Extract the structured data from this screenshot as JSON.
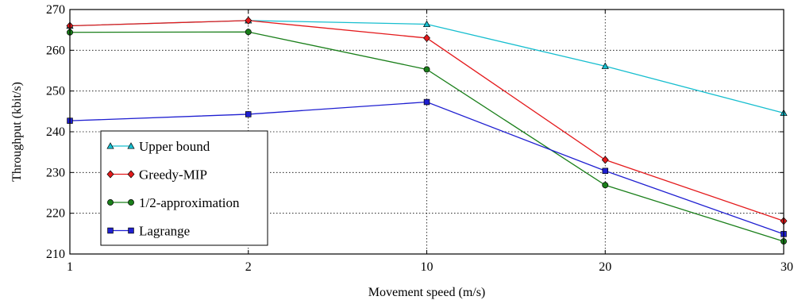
{
  "chart_data": {
    "type": "line",
    "title": "",
    "xlabel": "Movement speed (m/s)",
    "ylabel": "Throughput (kbit/s)",
    "categories": [
      "1",
      "2",
      "10",
      "20",
      "30"
    ],
    "ylim": [
      210,
      270
    ],
    "yticks": [
      210,
      220,
      230,
      240,
      250,
      260,
      270
    ],
    "grid": true,
    "legend_position": "lower-left",
    "series": [
      {
        "name": "Upper bound",
        "color": "#17becf",
        "marker": "triangle",
        "values": [
          266.0,
          267.3,
          266.4,
          256.1,
          244.6
        ]
      },
      {
        "name": "Greedy-MIP",
        "color": "#e41a1c",
        "marker": "diamond",
        "values": [
          266.0,
          267.3,
          263.0,
          233.1,
          218.1
        ]
      },
      {
        "name": "1/2-approximation",
        "color": "#1a7f1a",
        "marker": "circle",
        "values": [
          264.4,
          264.5,
          255.3,
          226.9,
          213.1
        ]
      },
      {
        "name": "Lagrange",
        "color": "#1f1fd1",
        "marker": "square",
        "values": [
          242.7,
          244.3,
          247.3,
          230.4,
          214.9
        ]
      }
    ]
  }
}
